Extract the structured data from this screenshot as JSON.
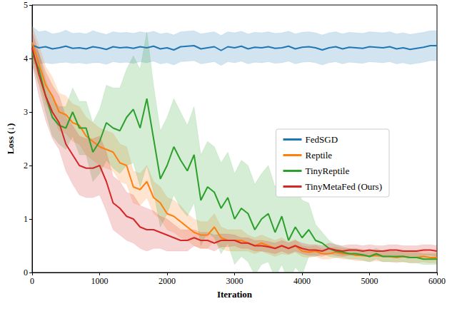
{
  "chart_data": {
    "type": "line",
    "x_label": "Iteration",
    "y_label": "Loss (↓)",
    "x": [
      0,
      100,
      200,
      300,
      400,
      500,
      600,
      700,
      800,
      900,
      1000,
      1100,
      1200,
      1300,
      1400,
      1500,
      1600,
      1700,
      1800,
      1900,
      2000,
      2100,
      2200,
      2300,
      2400,
      2500,
      2600,
      2700,
      2800,
      2900,
      3000,
      3100,
      3200,
      3300,
      3400,
      3500,
      3600,
      3700,
      3800,
      3900,
      4000,
      4100,
      4200,
      4300,
      4400,
      4500,
      4600,
      4700,
      4800,
      4900,
      5000,
      5100,
      5200,
      5300,
      5400,
      5500,
      5600,
      5700,
      5800,
      5900,
      6000
    ],
    "series": [
      {
        "name": "FedSGD",
        "color": "#1f77b4",
        "values": [
          4.25,
          4.2,
          4.22,
          4.18,
          4.2,
          4.23,
          4.19,
          4.2,
          4.18,
          4.22,
          4.2,
          4.17,
          4.22,
          4.2,
          4.21,
          4.19,
          4.22,
          4.2,
          4.23,
          4.18,
          4.2,
          4.16,
          4.22,
          4.23,
          4.24,
          4.18,
          4.2,
          4.22,
          4.15,
          4.22,
          4.2,
          4.23,
          4.18,
          4.21,
          4.2,
          4.22,
          4.19,
          4.2,
          4.23,
          4.18,
          4.21,
          4.22,
          4.2,
          4.16,
          4.2,
          4.22,
          4.18,
          4.21,
          4.2,
          4.19,
          4.22,
          4.21,
          4.2,
          4.22,
          4.18,
          4.2,
          4.17,
          4.19,
          4.21,
          4.24,
          4.24
        ],
        "band": [
          0.35,
          0.3,
          0.3,
          0.28,
          0.28,
          0.3,
          0.28,
          0.28,
          0.28,
          0.3,
          0.28,
          0.28,
          0.28,
          0.28,
          0.28,
          0.28,
          0.28,
          0.28,
          0.28,
          0.28,
          0.28,
          0.28,
          0.28,
          0.28,
          0.28,
          0.28,
          0.28,
          0.28,
          0.28,
          0.28,
          0.28,
          0.28,
          0.28,
          0.28,
          0.28,
          0.28,
          0.28,
          0.28,
          0.28,
          0.28,
          0.28,
          0.28,
          0.28,
          0.28,
          0.28,
          0.28,
          0.28,
          0.28,
          0.28,
          0.28,
          0.28,
          0.28,
          0.28,
          0.28,
          0.28,
          0.28,
          0.28,
          0.28,
          0.28,
          0.28,
          0.28
        ]
      },
      {
        "name": "Reptile",
        "color": "#ff7f0e",
        "values": [
          4.3,
          3.9,
          3.5,
          3.3,
          3.0,
          2.95,
          2.8,
          2.75,
          2.55,
          2.45,
          2.35,
          2.3,
          2.25,
          2.05,
          2.0,
          1.6,
          1.55,
          1.7,
          1.4,
          1.3,
          1.1,
          1.05,
          0.95,
          0.85,
          0.75,
          0.7,
          0.7,
          0.85,
          0.65,
          0.6,
          0.6,
          0.6,
          0.55,
          0.5,
          0.55,
          0.5,
          0.45,
          0.5,
          0.45,
          0.5,
          0.4,
          0.38,
          0.4,
          0.35,
          0.35,
          0.38,
          0.35,
          0.35,
          0.32,
          0.32,
          0.3,
          0.32,
          0.3,
          0.3,
          0.28,
          0.3,
          0.28,
          0.28,
          0.3,
          0.28,
          0.28
        ],
        "band": [
          0.3,
          0.35,
          0.35,
          0.35,
          0.35,
          0.35,
          0.35,
          0.35,
          0.35,
          0.35,
          0.35,
          0.35,
          0.35,
          0.35,
          0.35,
          0.3,
          0.3,
          0.3,
          0.3,
          0.3,
          0.3,
          0.3,
          0.3,
          0.25,
          0.25,
          0.25,
          0.25,
          0.25,
          0.2,
          0.2,
          0.2,
          0.2,
          0.15,
          0.15,
          0.15,
          0.15,
          0.15,
          0.15,
          0.12,
          0.12,
          0.1,
          0.1,
          0.1,
          0.1,
          0.1,
          0.1,
          0.1,
          0.1,
          0.1,
          0.1,
          0.1,
          0.1,
          0.1,
          0.1,
          0.1,
          0.1,
          0.1,
          0.1,
          0.1,
          0.1,
          0.1
        ]
      },
      {
        "name": "TinyReptile",
        "color": "#2ca02c",
        "values": [
          4.1,
          3.8,
          3.3,
          2.9,
          2.75,
          2.7,
          3.0,
          2.7,
          2.7,
          2.25,
          2.45,
          2.8,
          2.7,
          2.65,
          2.9,
          3.05,
          2.7,
          3.25,
          2.5,
          1.75,
          2.0,
          2.35,
          2.1,
          1.9,
          2.2,
          1.35,
          1.6,
          1.5,
          1.2,
          1.4,
          1.0,
          1.2,
          1.1,
          0.8,
          1.0,
          1.1,
          0.75,
          1.05,
          0.6,
          0.85,
          0.65,
          0.8,
          0.6,
          0.55,
          0.45,
          0.4,
          0.38,
          0.35,
          0.35,
          0.33,
          0.3,
          0.35,
          0.3,
          0.3,
          0.3,
          0.3,
          0.28,
          0.28,
          0.25,
          0.25,
          0.25
        ],
        "band": [
          0.2,
          0.3,
          0.3,
          0.35,
          0.35,
          0.4,
          0.45,
          0.5,
          0.5,
          0.55,
          0.6,
          0.7,
          0.75,
          0.8,
          0.9,
          1.0,
          1.1,
          1.25,
          1.0,
          0.9,
          0.9,
          0.9,
          0.9,
          0.85,
          0.9,
          0.85,
          0.85,
          0.85,
          0.85,
          0.85,
          0.85,
          0.9,
          0.9,
          0.85,
          0.85,
          0.9,
          0.85,
          0.9,
          0.8,
          0.75,
          0.7,
          0.5,
          0.3,
          0.2,
          0.15,
          0.12,
          0.1,
          0.1,
          0.1,
          0.1,
          0.1,
          0.1,
          0.1,
          0.1,
          0.1,
          0.1,
          0.1,
          0.1,
          0.1,
          0.1,
          0.1
        ]
      },
      {
        "name": "TinyMetaFed (Ours)",
        "color": "#d62728",
        "values": [
          4.2,
          3.7,
          3.3,
          3.0,
          2.8,
          2.4,
          2.2,
          2.0,
          1.95,
          1.95,
          2.0,
          1.7,
          1.3,
          1.2,
          1.05,
          1.0,
          0.85,
          0.8,
          0.8,
          0.75,
          0.7,
          0.65,
          0.6,
          0.6,
          0.65,
          0.6,
          0.6,
          0.55,
          0.6,
          0.6,
          0.6,
          0.55,
          0.55,
          0.5,
          0.5,
          0.48,
          0.45,
          0.5,
          0.45,
          0.5,
          0.45,
          0.42,
          0.42,
          0.4,
          0.45,
          0.42,
          0.4,
          0.42,
          0.42,
          0.4,
          0.42,
          0.4,
          0.4,
          0.42,
          0.42,
          0.4,
          0.4,
          0.4,
          0.42,
          0.42,
          0.4
        ],
        "band": [
          0.3,
          0.4,
          0.45,
          0.5,
          0.5,
          0.5,
          0.55,
          0.55,
          0.55,
          0.55,
          0.55,
          0.55,
          0.5,
          0.5,
          0.45,
          0.45,
          0.4,
          0.4,
          0.35,
          0.3,
          0.3,
          0.25,
          0.2,
          0.2,
          0.15,
          0.15,
          0.15,
          0.15,
          0.12,
          0.12,
          0.1,
          0.1,
          0.1,
          0.1,
          0.1,
          0.1,
          0.1,
          0.1,
          0.1,
          0.1,
          0.1,
          0.1,
          0.1,
          0.1,
          0.1,
          0.1,
          0.1,
          0.1,
          0.1,
          0.1,
          0.1,
          0.1,
          0.1,
          0.1,
          0.1,
          0.1,
          0.1,
          0.1,
          0.1,
          0.1,
          0.1
        ]
      }
    ],
    "xlim": [
      0,
      6000
    ],
    "xticks": [
      0,
      1000,
      2000,
      3000,
      4000,
      5000,
      6000
    ],
    "ylim": [
      0,
      5
    ],
    "yticks": [
      0,
      1,
      2,
      3,
      4,
      5
    ],
    "grid": false,
    "legend": "right"
  }
}
